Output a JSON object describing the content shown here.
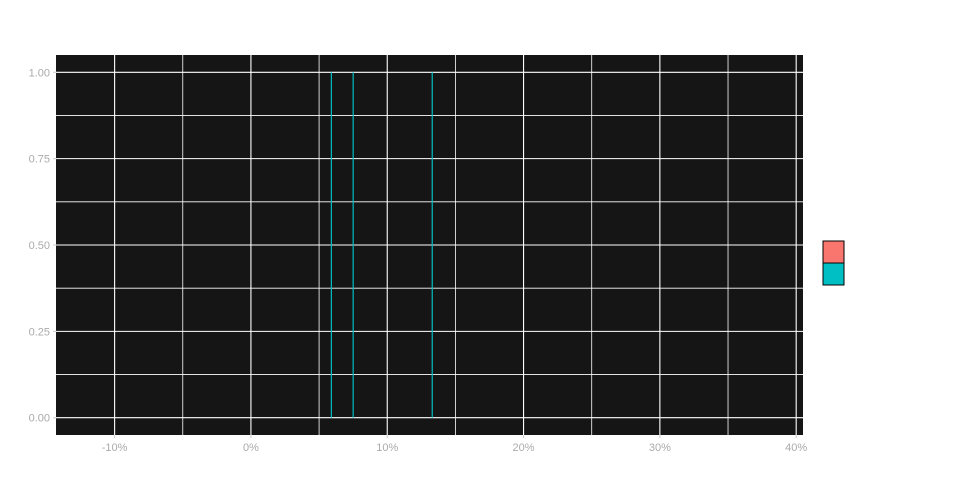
{
  "colors": {
    "panel_background": "#151515",
    "grid_line": "#ffffff",
    "series_line": "#00bfc4",
    "tick_label": "#aaaaaa",
    "legend_key_1": "#f8766d",
    "legend_key_2": "#00bfc4"
  },
  "chart_data": {
    "type": "line",
    "title": "",
    "xlabel": "",
    "ylabel": "",
    "xlim": [
      -0.143,
      0.405
    ],
    "ylim": [
      -0.05,
      1.05
    ],
    "x_major_ticks": [
      -0.1,
      0.0,
      0.1,
      0.2,
      0.3,
      0.4
    ],
    "x_tick_labels": [
      "-10%",
      "0%",
      "10%",
      "20%",
      "30%",
      "40%"
    ],
    "x_minor_ticks": [
      -0.05,
      0.05,
      0.15,
      0.25,
      0.35
    ],
    "y_major_ticks": [
      0.0,
      0.25,
      0.5,
      0.75,
      1.0
    ],
    "y_tick_labels": [
      "0.00",
      "0.25",
      "0.50",
      "0.75",
      "1.00"
    ],
    "y_minor_ticks": [
      0.125,
      0.375,
      0.625,
      0.875
    ],
    "grid": true,
    "legend_position": "right",
    "legend_keys": [
      {
        "color": "#f8766d"
      },
      {
        "color": "#00bfc4"
      }
    ],
    "series": [
      {
        "color": "#00bfc4",
        "segments": [
          {
            "x": 0.059,
            "y0": 0.0,
            "y1": 1.0
          },
          {
            "x": 0.075,
            "y0": 0.0,
            "y1": 1.0
          },
          {
            "x": 0.133,
            "y0": 0.0,
            "y1": 1.0
          }
        ]
      }
    ]
  }
}
